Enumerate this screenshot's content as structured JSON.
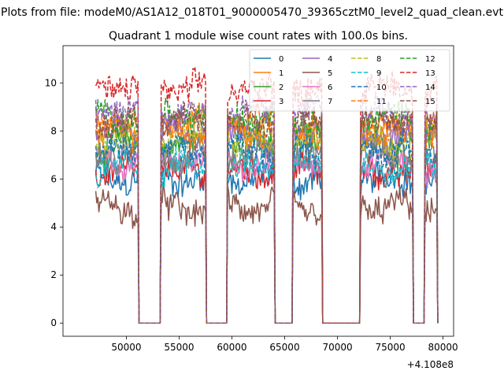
{
  "suptitle": "Plots from file: modeM0/AS1A12_018T01_9000005470_39365cztM0_level2_quad_clean.evt",
  "chart_data": {
    "type": "line",
    "title": "Quadrant 1 module wise count rates with 100.0s bins.",
    "xlabel": "",
    "ylabel": "",
    "x_offset_label": "+4.108e8",
    "xlim": [
      44000,
      81000
    ],
    "ylim": [
      -0.55,
      11.55
    ],
    "x_ticks": [
      50000,
      55000,
      60000,
      65000,
      70000,
      75000,
      80000
    ],
    "x_tick_labels": [
      "50000",
      "55000",
      "60000",
      "65000",
      "70000",
      "75000",
      "80000"
    ],
    "y_ticks": [
      0,
      2,
      4,
      6,
      8,
      10
    ],
    "y_tick_labels": [
      "0",
      "2",
      "4",
      "6",
      "8",
      "10"
    ],
    "bin_width": 100,
    "gti_segments": [
      [
        47100,
        51200
      ],
      [
        53300,
        57600
      ],
      [
        59600,
        64100
      ],
      [
        65800,
        68600
      ],
      [
        72200,
        77200
      ],
      [
        78300,
        79500
      ]
    ],
    "x_range": [
      47100,
      79500
    ],
    "legend_location": "upper right",
    "legend_columns": 4,
    "series": [
      {
        "name": "0",
        "mean": 6.0,
        "color": "#1f77b4",
        "dash": "solid"
      },
      {
        "name": "1",
        "mean": 8.3,
        "color": "#ff7f0e",
        "dash": "solid"
      },
      {
        "name": "2",
        "mean": 7.4,
        "color": "#2ca02c",
        "dash": "solid"
      },
      {
        "name": "3",
        "mean": 6.3,
        "color": "#d62728",
        "dash": "solid"
      },
      {
        "name": "4",
        "mean": 7.9,
        "color": "#9467bd",
        "dash": "solid"
      },
      {
        "name": "5",
        "mean": 4.8,
        "color": "#8c564b",
        "dash": "solid"
      },
      {
        "name": "6",
        "mean": 6.7,
        "color": "#e377c2",
        "dash": "solid"
      },
      {
        "name": "7",
        "mean": 7.0,
        "color": "#7f7f7f",
        "dash": "solid"
      },
      {
        "name": "8",
        "mean": 7.6,
        "color": "#bcbd22",
        "dash": "dashed"
      },
      {
        "name": "9",
        "mean": 6.5,
        "color": "#17becf",
        "dash": "dashed"
      },
      {
        "name": "10",
        "mean": 7.2,
        "color": "#1f77b4",
        "dash": "dashed"
      },
      {
        "name": "11",
        "mean": 8.0,
        "color": "#ff7f0e",
        "dash": "dashed"
      },
      {
        "name": "12",
        "mean": 8.6,
        "color": "#2ca02c",
        "dash": "dashed"
      },
      {
        "name": "13",
        "mean": 9.8,
        "color": "#d62728",
        "dash": "dashed"
      },
      {
        "name": "14",
        "mean": 8.8,
        "color": "#9467bd",
        "dash": "dashed"
      },
      {
        "name": "15",
        "mean": 8.4,
        "color": "#8c564b",
        "dash": "dashed"
      }
    ]
  }
}
